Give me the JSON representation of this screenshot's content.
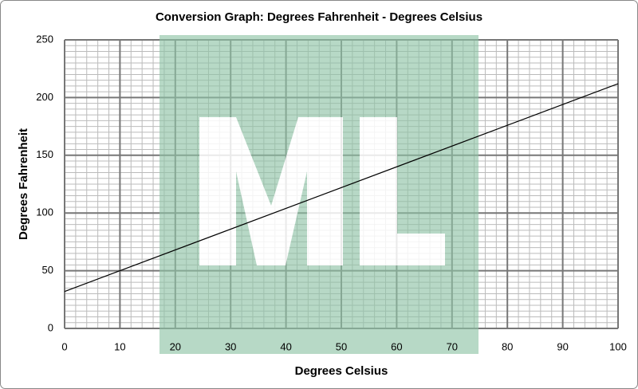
{
  "chart_data": {
    "type": "line",
    "title": "Conversion Graph: Degrees Fahrenheit - Degrees Celsius",
    "x_label": "Degrees Celsius",
    "y_label": "Degrees Fahrenheit",
    "x": [
      0,
      100
    ],
    "series": [
      {
        "name": "Fahrenheit",
        "color": "#000000",
        "values": [
          32,
          212
        ]
      }
    ],
    "xlim": [
      0,
      100
    ],
    "xticks": [
      0,
      10,
      20,
      30,
      40,
      50,
      60,
      70,
      80,
      90,
      100
    ],
    "ylim": [
      0,
      250
    ],
    "yticks": [
      0,
      50,
      100,
      150,
      200,
      250
    ],
    "grid": true
  }
}
